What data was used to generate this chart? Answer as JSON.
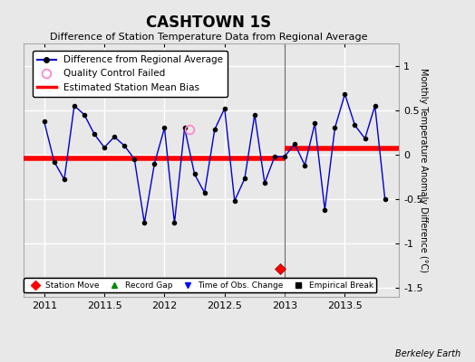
{
  "title": "CASHTOWN 1S",
  "subtitle": "Difference of Station Temperature Data from Regional Average",
  "ylabel": "Monthly Temperature Anomaly Difference (°C)",
  "xlim": [
    2010.83,
    2013.95
  ],
  "ylim": [
    -1.6,
    1.25
  ],
  "yticks": [
    -1.5,
    -1.0,
    -0.5,
    0,
    0.5,
    1.0
  ],
  "xticks": [
    2011,
    2011.5,
    2012,
    2012.5,
    2013,
    2013.5
  ],
  "xticklabels": [
    "2011",
    "2011.5",
    "2012",
    "2012.5",
    "2013",
    "2013.5"
  ],
  "bg_color": "#e8e8e8",
  "line_color": "#0000cc",
  "marker_color": "#000000",
  "bias_line_color": "#ff0000",
  "vertical_line_x": 2013.0,
  "bias_seg1": {
    "x": [
      2010.83,
      2013.0
    ],
    "y": [
      -0.04,
      -0.04
    ]
  },
  "bias_seg2": {
    "x": [
      2013.0,
      2013.95
    ],
    "y": [
      0.07,
      0.07
    ]
  },
  "station_move_x": 2012.958,
  "station_move_y": -1.28,
  "qc_fail_x": 2012.208,
  "qc_fail_y": 0.28,
  "x_data": [
    2011.0,
    2011.083,
    2011.167,
    2011.25,
    2011.333,
    2011.417,
    2011.5,
    2011.583,
    2011.667,
    2011.75,
    2011.833,
    2011.917,
    2012.0,
    2012.083,
    2012.167,
    2012.25,
    2012.333,
    2012.417,
    2012.5,
    2012.583,
    2012.667,
    2012.75,
    2012.833,
    2012.917,
    2013.0,
    2013.083,
    2013.167,
    2013.25,
    2013.333,
    2013.417,
    2013.5,
    2013.583,
    2013.667,
    2013.75,
    2013.833
  ],
  "y_data": [
    0.37,
    -0.08,
    -0.28,
    0.55,
    0.45,
    0.23,
    0.08,
    0.2,
    0.1,
    -0.05,
    -0.77,
    -0.1,
    0.3,
    -0.77,
    0.3,
    -0.22,
    -0.43,
    0.28,
    0.52,
    -0.52,
    -0.27,
    0.45,
    -0.32,
    -0.02,
    -0.02,
    0.12,
    -0.12,
    0.35,
    -0.62,
    0.3,
    0.68,
    0.33,
    0.18,
    0.55,
    -0.5
  ],
  "watermark": "Berkeley Earth",
  "title_fontsize": 12,
  "subtitle_fontsize": 8,
  "tick_fontsize": 8,
  "ylabel_fontsize": 7
}
